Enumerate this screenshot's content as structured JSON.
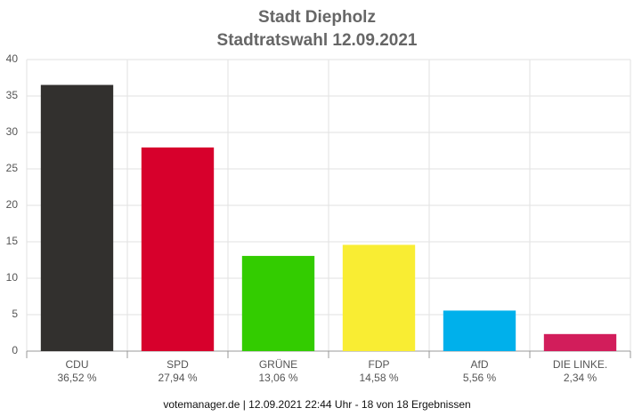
{
  "chart_data": {
    "type": "bar",
    "title": "Stadt Diepholz",
    "subtitle": "Stadtratswahl 12.09.2021",
    "categories": [
      "CDU",
      "SPD",
      "GRÜNE",
      "FDP",
      "AfD",
      "DIE LINKE."
    ],
    "values": [
      36.52,
      27.94,
      13.06,
      14.58,
      5.56,
      2.34
    ],
    "value_labels": [
      "36,52 %",
      "27,94 %",
      "13,06 %",
      "14,58 %",
      "5,56 %",
      "2,34 %"
    ],
    "colors": [
      "#32302e",
      "#d7002c",
      "#33cc00",
      "#f9ed33",
      "#00b0eb",
      "#d21d5b"
    ],
    "ylim": [
      0,
      40
    ],
    "yticks": [
      0,
      5,
      10,
      15,
      20,
      25,
      30,
      35,
      40
    ],
    "grid": true,
    "footer": "votemanager.de | 12.09.2021 22:44 Uhr - 18 von 18 Ergebnissen"
  }
}
